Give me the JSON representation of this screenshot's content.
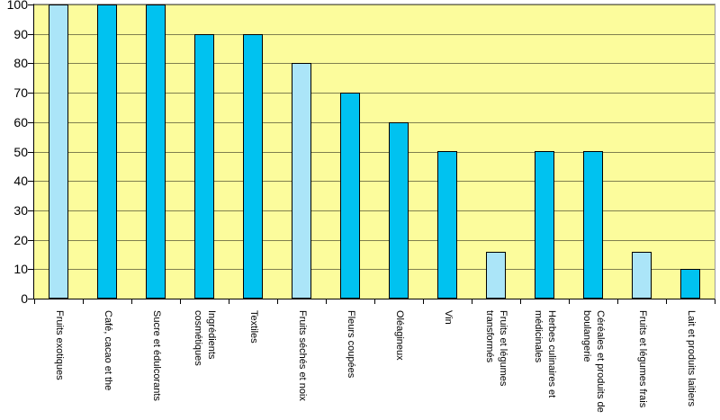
{
  "chart_data": {
    "type": "bar",
    "title": "",
    "xlabel": "",
    "ylabel": "",
    "ylim": [
      0,
      100
    ],
    "y_ticks": [
      0,
      10,
      20,
      30,
      40,
      50,
      60,
      70,
      80,
      90,
      100
    ],
    "grid": "horizontal",
    "legend": "none",
    "categories": [
      "Fruits exotiques",
      "Café, cacao et the",
      "Sucre et édulcorants",
      "Ingrédients\ncosmétiques",
      "Textiles",
      "Fruits séchés et noix",
      "Fleurs coupées",
      "Oléagineux",
      "Vin",
      "Fruits et légumes\ntransformés",
      "Herbes culinaires et\nmédicinales",
      "Céréales et produits de\nboulangerie",
      "Fruits et légumes frais",
      "Lait et produits laitiers"
    ],
    "values": [
      100,
      100,
      100,
      90,
      90,
      80,
      70,
      60,
      50,
      16,
      50,
      50,
      16,
      10
    ],
    "bar_shades": [
      "light",
      "dark",
      "dark",
      "dark",
      "dark",
      "light",
      "dark",
      "dark",
      "dark",
      "light",
      "dark",
      "dark",
      "light",
      "dark"
    ],
    "colors": {
      "bar_dark": "#00C2F0",
      "bar_light": "#ABE5F8",
      "bar_border": "#000000",
      "plot_background": "#FCFC9C",
      "gridline": "#7F7F4F",
      "plot_border": "#9C9C9C",
      "axis": "#000000",
      "figure_background": "#FFFFFF",
      "text": "#000000"
    }
  }
}
